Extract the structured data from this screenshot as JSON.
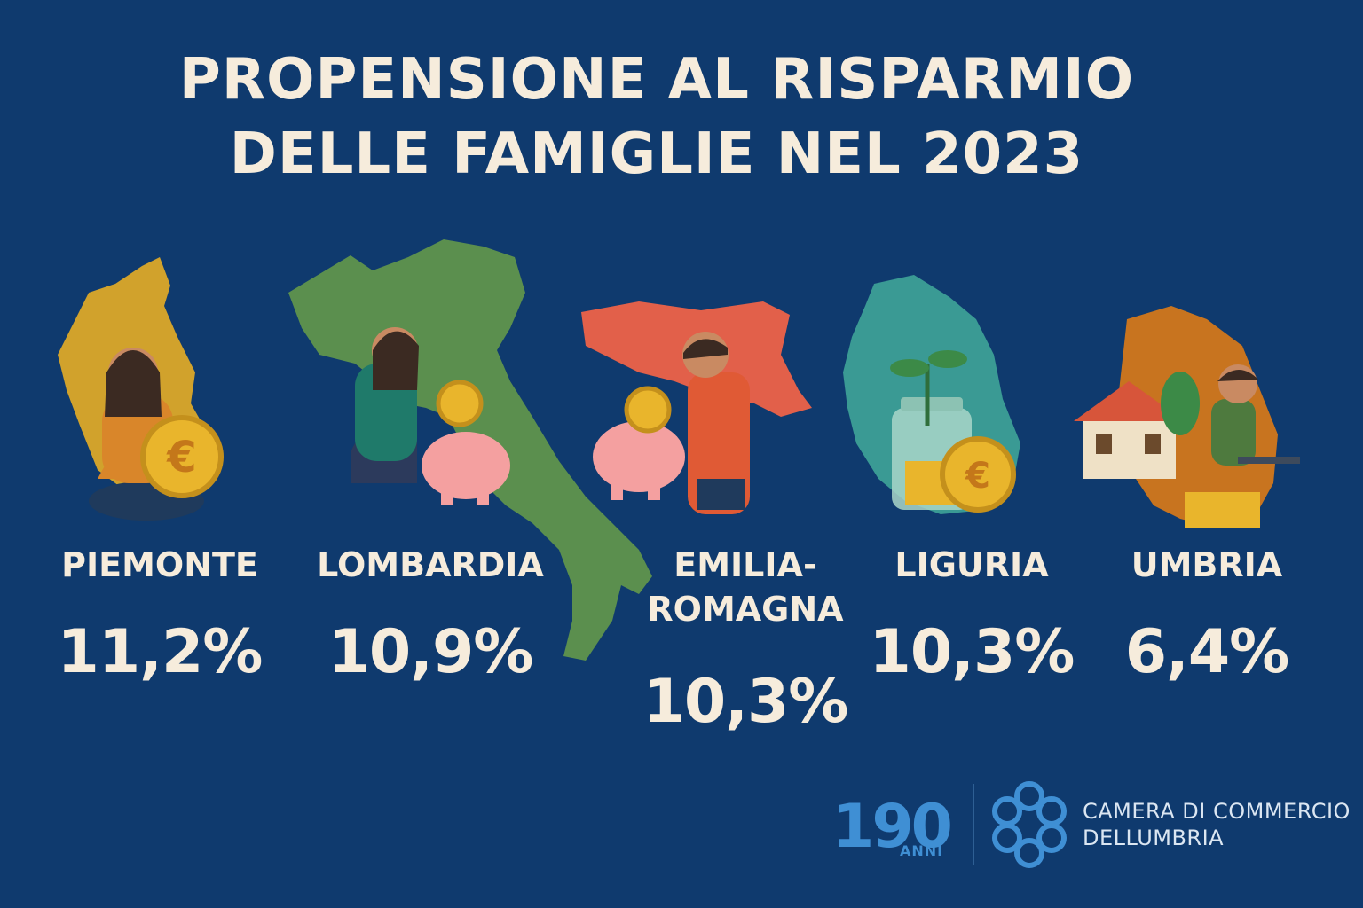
{
  "title": {
    "line1": "PROPENSIONE AL RISPARMIO",
    "line2": "DELLE FAMIGLIE NEL 2023"
  },
  "regions": [
    {
      "name": "PIEMONTE",
      "value": "11,2%",
      "map_color": "#d1a22c",
      "icon": "woman-holding-euro-coin-icon"
    },
    {
      "name": "LOMBARDIA",
      "value": "10,9%",
      "map_color": "#5b8f4e",
      "icon": "woman-with-piggy-bank-icon"
    },
    {
      "name_line1": "EMILIA-",
      "name_line2": "ROMAGNA",
      "value": "10,3%",
      "map_color": "#e2604a",
      "icon": "man-with-piggy-bank-icon"
    },
    {
      "name": "LIGURIA",
      "value": "10,3%",
      "map_color": "#3a9a94",
      "icon": "savings-jar-plant-icon"
    },
    {
      "name": "UMBRIA",
      "value": "6,4%",
      "map_color": "#c8741f",
      "icon": "house-and-laptop-man-icon"
    }
  ],
  "italy_map_color": "#5b8f4e",
  "footer": {
    "anniversary_number": "190",
    "anniversary_word": "ANNI",
    "org_line1": "CAMERA DI COMMERCIO",
    "org_line2": "DELLUMBRIA",
    "accent_color": "#3f8fd4"
  }
}
